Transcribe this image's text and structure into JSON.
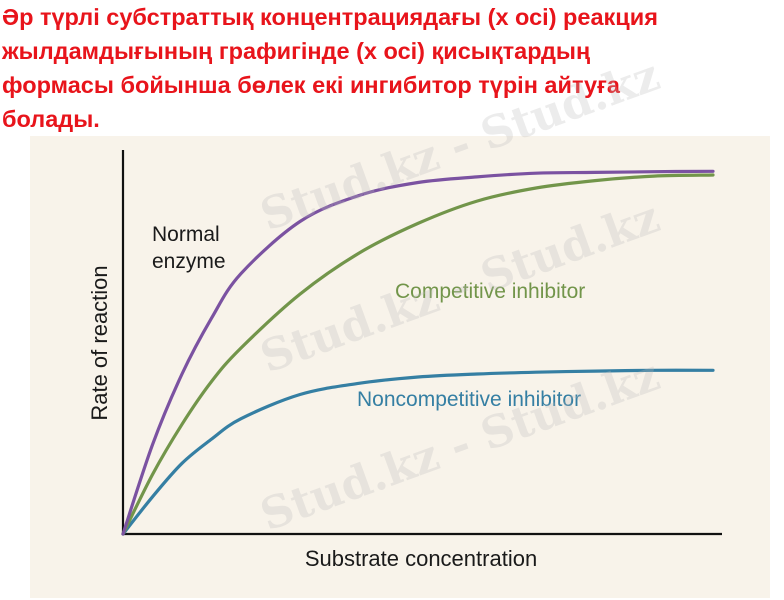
{
  "heading": {
    "lines": [
      "Әр түрлі субстраттық концентрациядағы (x осі) реакция",
      "жылдамдығының графигінде (x осі) қисықтардың",
      "формасы бойынша бөлек екі ингибитор түрін айтуға",
      "болады."
    ]
  },
  "watermark": {
    "text": "Stud.kz - Stud.kz"
  },
  "chart_data": {
    "type": "line",
    "title": "",
    "xlabel": "Substrate concentration",
    "ylabel": "Rate of reaction",
    "x_ticks": false,
    "y_ticks": false,
    "xlim": [
      0,
      10
    ],
    "ylim": [
      0,
      10
    ],
    "grid": false,
    "legend": "curve labels placed next to each line",
    "series": [
      {
        "name": "Normal enzyme",
        "label_lines": [
          "Normal",
          "enzyme"
        ],
        "color": "#7b52a1",
        "x": [
          0,
          0.5,
          1,
          1.5,
          2,
          3,
          4,
          5,
          6,
          7,
          8,
          9,
          10
        ],
        "y": [
          0,
          2.4,
          4.3,
          5.8,
          7.0,
          8.4,
          9.1,
          9.45,
          9.6,
          9.7,
          9.72,
          9.74,
          9.75
        ]
      },
      {
        "name": "Competitive inhibitor",
        "label_lines": [
          "Competitive inhibitor"
        ],
        "color": "#72954a",
        "x": [
          0,
          0.5,
          1,
          1.5,
          2,
          3,
          4,
          5,
          6,
          7,
          8,
          9,
          10
        ],
        "y": [
          0,
          1.6,
          2.95,
          4.1,
          5.0,
          6.45,
          7.55,
          8.35,
          8.95,
          9.3,
          9.5,
          9.62,
          9.65
        ]
      },
      {
        "name": "Noncompetitive inhibitor",
        "label_lines": [
          "Noncompetitive inhibitor"
        ],
        "color": "#357fa3",
        "x": [
          0,
          0.5,
          1,
          1.5,
          2,
          3,
          4,
          5,
          6,
          7,
          8,
          9,
          10
        ],
        "y": [
          0,
          1.0,
          1.9,
          2.55,
          3.1,
          3.75,
          4.05,
          4.22,
          4.3,
          4.35,
          4.38,
          4.4,
          4.4
        ]
      }
    ]
  }
}
